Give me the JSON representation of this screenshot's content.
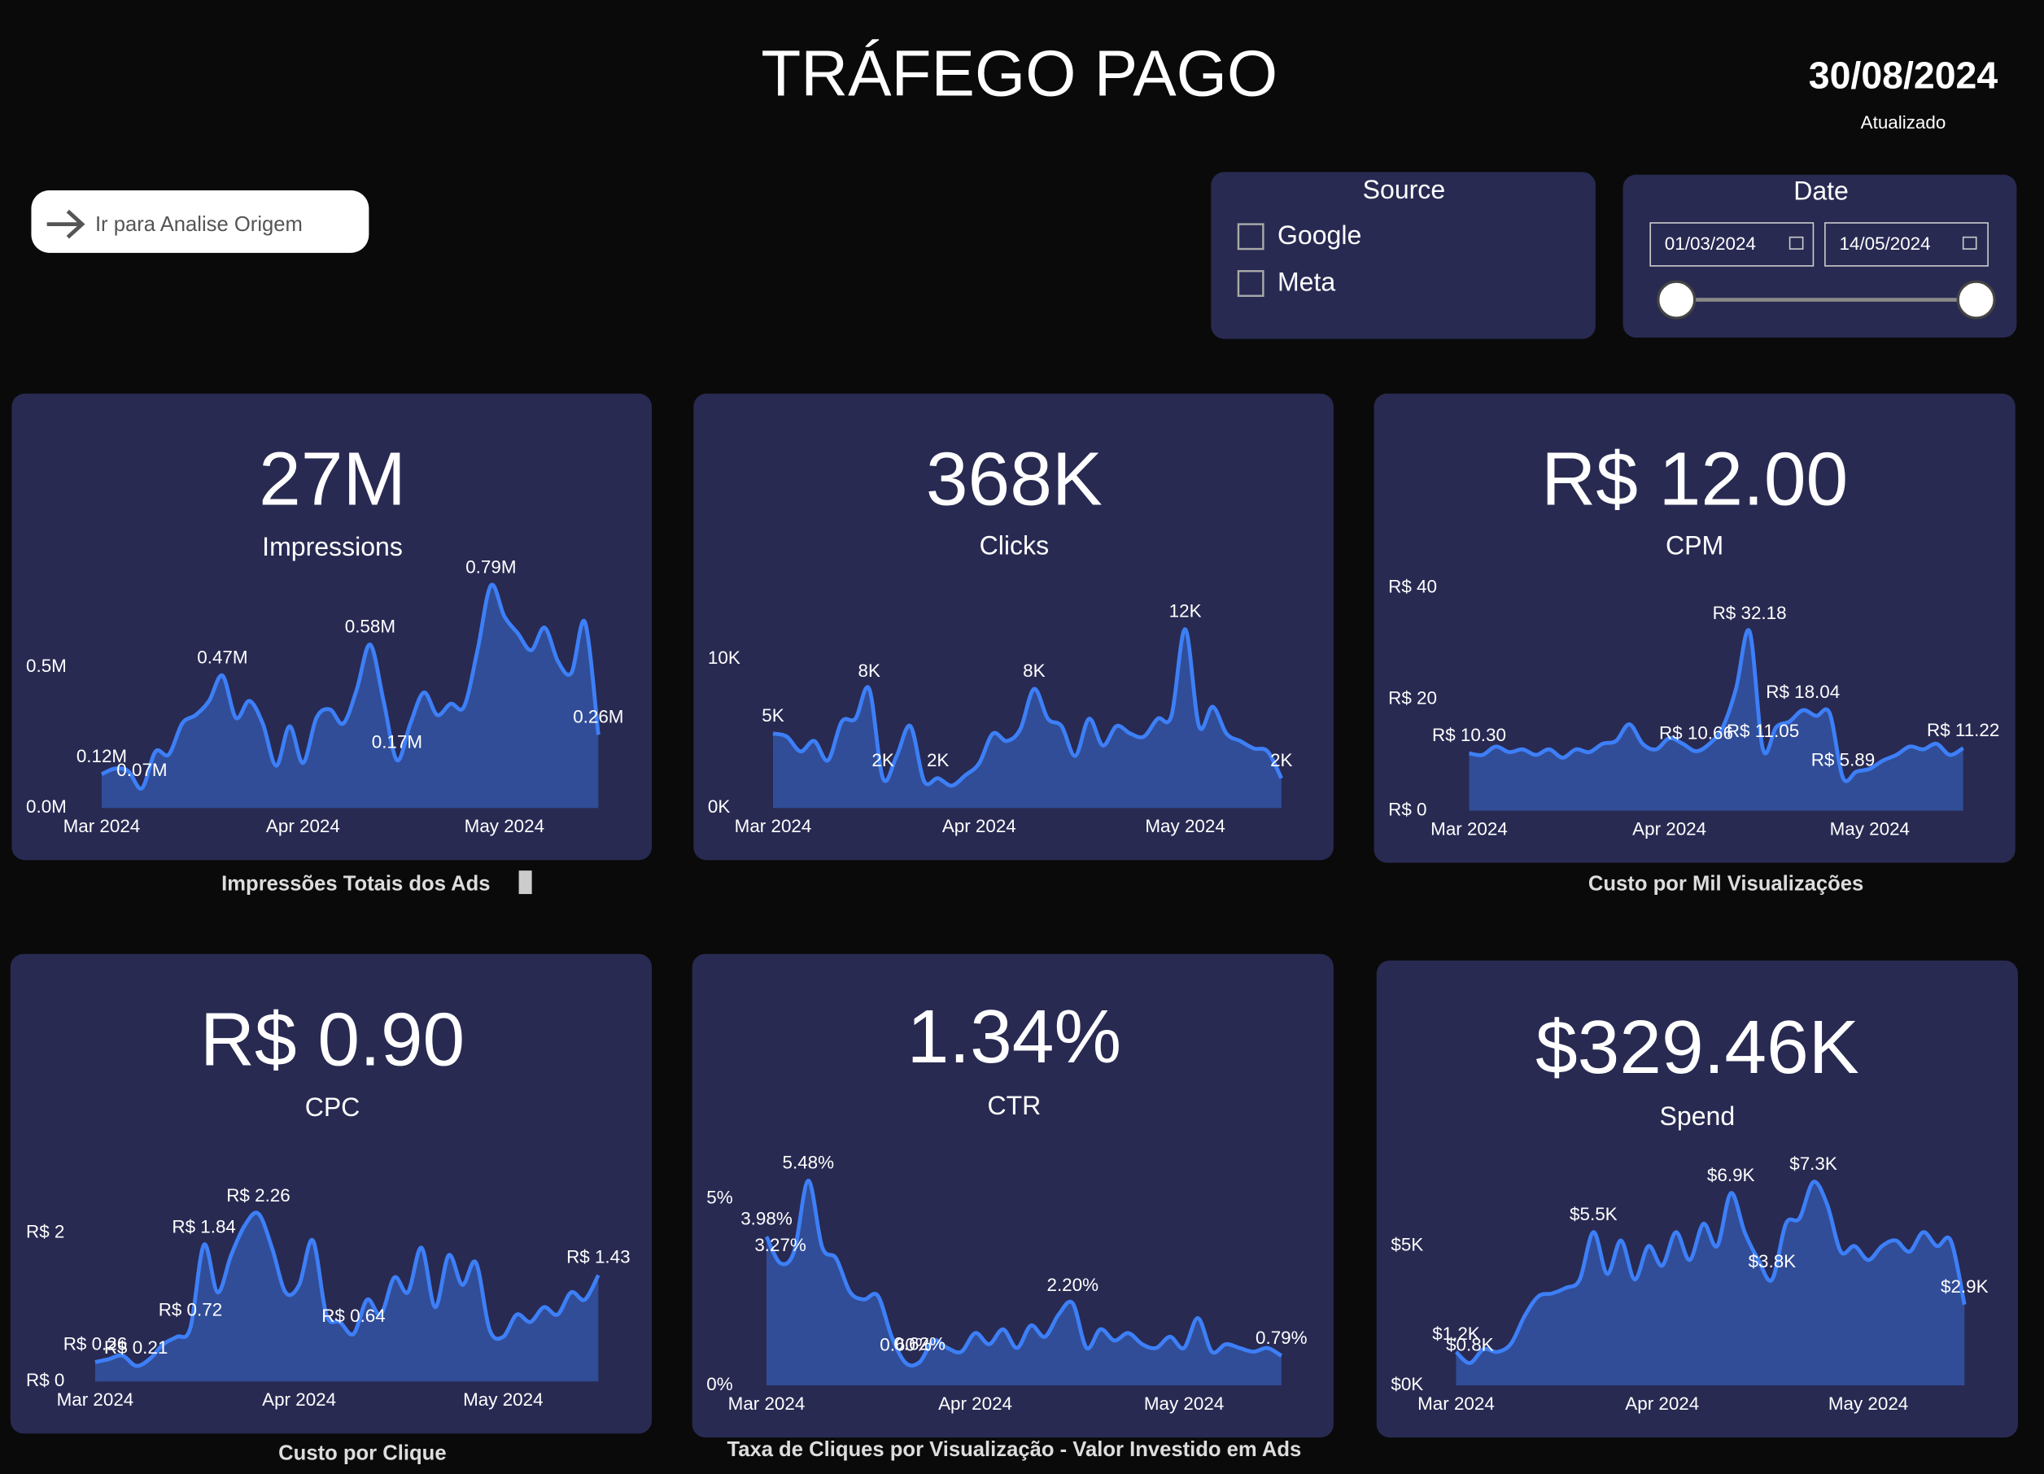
{
  "header": {
    "title": "TRÁFEGO PAGO",
    "date": "30/08/2024",
    "updated": "Atualizado"
  },
  "nav_button": {
    "label": "Ir para Analise Origem"
  },
  "source_slicer": {
    "title": "Source",
    "options": [
      "Google",
      "Meta"
    ]
  },
  "date_slicer": {
    "title": "Date",
    "start": "01/03/2024",
    "end": "14/05/2024"
  },
  "chart_data": [
    {
      "type": "area",
      "title": "27M",
      "subtitle": "Impressions",
      "caption": "Impressões Totais dos Ads",
      "categories": [
        "Mar 2024",
        null,
        null,
        null,
        null,
        null,
        null,
        null,
        null,
        null,
        null,
        null,
        null,
        null,
        null,
        "Apr 2024",
        null,
        null,
        null,
        null,
        null,
        null,
        null,
        null,
        null,
        null,
        null,
        null,
        null,
        null,
        "May 2024",
        null,
        null,
        null,
        null,
        null,
        null,
        null
      ],
      "values": [
        120000,
        140000,
        130000,
        70000,
        200000,
        190000,
        300000,
        330000,
        380000,
        470000,
        320000,
        380000,
        300000,
        150000,
        290000,
        160000,
        320000,
        350000,
        300000,
        420000,
        580000,
        380000,
        170000,
        300000,
        410000,
        330000,
        370000,
        360000,
        560000,
        790000,
        680000,
        620000,
        560000,
        640000,
        520000,
        480000,
        660000,
        260000
      ],
      "value_labels": [
        "0.12M",
        null,
        null,
        "0.07M",
        null,
        null,
        null,
        null,
        null,
        "0.47M",
        null,
        null,
        null,
        null,
        null,
        null,
        null,
        null,
        null,
        null,
        "0.58M",
        null,
        "0.17M",
        null,
        null,
        null,
        null,
        null,
        null,
        "0.79M",
        null,
        null,
        null,
        null,
        null,
        null,
        null,
        "0.26M"
      ],
      "color": "#3d7ff7",
      "ylim": [
        0,
        800000
      ],
      "yticks": [
        {
          "value": 0,
          "label": "0.0M"
        },
        {
          "value": 500000,
          "label": "0.5M"
        }
      ]
    },
    {
      "type": "area",
      "title": "368K",
      "subtitle": "Clicks",
      "categories": [
        "Mar 2024",
        null,
        null,
        null,
        null,
        null,
        null,
        null,
        null,
        null,
        null,
        null,
        null,
        null,
        null,
        "Apr 2024",
        null,
        null,
        null,
        null,
        null,
        null,
        null,
        null,
        null,
        null,
        null,
        null,
        null,
        null,
        "May 2024",
        null,
        null,
        null,
        null,
        null,
        null,
        null
      ],
      "values": [
        5000,
        4800,
        3800,
        4500,
        3200,
        5800,
        6000,
        8000,
        2000,
        3500,
        5500,
        1800,
        2000,
        1500,
        2200,
        3000,
        5000,
        4500,
        5300,
        8000,
        6000,
        5500,
        3500,
        6000,
        4200,
        5500,
        5000,
        4800,
        6000,
        6200,
        12000,
        5500,
        6800,
        5000,
        4500,
        4000,
        3800,
        2000
      ],
      "value_labels": [
        "5K",
        null,
        null,
        null,
        null,
        null,
        null,
        "8K",
        "2K",
        null,
        null,
        null,
        "2K",
        null,
        null,
        null,
        null,
        null,
        null,
        "8K",
        null,
        null,
        null,
        null,
        null,
        null,
        null,
        null,
        null,
        null,
        "12K",
        null,
        null,
        null,
        null,
        null,
        null,
        "2K"
      ],
      "color": "#3d7ff7",
      "ylim": [
        0,
        14000
      ],
      "yticks": [
        {
          "value": 0,
          "label": "0K"
        },
        {
          "value": 10000,
          "label": "10K"
        }
      ]
    },
    {
      "type": "area",
      "title": "R$ 12.00",
      "subtitle": "CPM",
      "caption": "Custo por Mil Visualizações",
      "categories": [
        "Mar 2024",
        null,
        null,
        null,
        null,
        null,
        null,
        null,
        null,
        null,
        null,
        null,
        null,
        null,
        null,
        "Apr 2024",
        null,
        null,
        null,
        null,
        null,
        null,
        null,
        null,
        null,
        null,
        null,
        null,
        null,
        null,
        "May 2024",
        null,
        null,
        null,
        null,
        null,
        null,
        null
      ],
      "values": [
        10.3,
        10,
        11.5,
        10.5,
        11,
        10,
        11,
        9.5,
        11,
        10.5,
        12,
        12.5,
        15.5,
        12,
        11,
        13,
        12,
        10.66,
        12,
        15,
        22,
        32.18,
        11.05,
        15,
        16,
        18.04,
        17,
        17.5,
        5.89,
        7,
        7.5,
        9,
        10,
        11.5,
        11,
        12,
        10,
        11.22
      ],
      "value_labels": [
        "R$ 10.30",
        null,
        null,
        null,
        null,
        null,
        null,
        null,
        null,
        null,
        null,
        null,
        null,
        null,
        null,
        null,
        null,
        "R$ 10.66",
        null,
        null,
        null,
        "R$ 32.18",
        "R$ 11.05",
        null,
        null,
        "R$ 18.04",
        null,
        null,
        "R$ 5.89",
        null,
        null,
        null,
        null,
        null,
        null,
        null,
        null,
        "R$ 11.22"
      ],
      "color": "#3d7ff7",
      "ylim": [
        0,
        40
      ],
      "yticks": [
        {
          "value": 0,
          "label": "R$ 0"
        },
        {
          "value": 20,
          "label": "R$ 20"
        },
        {
          "value": 40,
          "label": "R$ 40"
        }
      ]
    },
    {
      "type": "area",
      "title": "R$ 0.90",
      "subtitle": "CPC",
      "caption": "Custo por Clique",
      "categories": [
        "Mar 2024",
        null,
        null,
        null,
        null,
        null,
        null,
        null,
        null,
        null,
        null,
        null,
        null,
        null,
        null,
        "Apr 2024",
        null,
        null,
        null,
        null,
        null,
        null,
        null,
        null,
        null,
        null,
        null,
        null,
        null,
        null,
        "May 2024",
        null,
        null,
        null,
        null,
        null,
        null,
        null
      ],
      "values": [
        0.26,
        0.3,
        0.35,
        0.21,
        0.3,
        0.5,
        0.6,
        0.72,
        1.84,
        1.2,
        1.7,
        2.1,
        2.26,
        1.8,
        1.2,
        1.3,
        1.9,
        0.9,
        0.8,
        0.64,
        1.1,
        0.9,
        1.4,
        1.2,
        1.8,
        1.0,
        1.7,
        1.3,
        1.6,
        0.7,
        0.6,
        0.9,
        0.8,
        1.0,
        0.9,
        1.2,
        1.1,
        1.43
      ],
      "value_labels": [
        "R$ 0.26",
        null,
        null,
        "R$ 0.21",
        null,
        null,
        null,
        "R$ 0.72",
        "R$ 1.84",
        null,
        null,
        null,
        "R$ 2.26",
        null,
        null,
        null,
        null,
        null,
        null,
        "R$ 0.64",
        null,
        null,
        null,
        null,
        null,
        null,
        null,
        null,
        null,
        null,
        null,
        null,
        null,
        null,
        null,
        null,
        null,
        "R$ 1.43"
      ],
      "color": "#3d7ff7",
      "ylim": [
        0,
        3
      ],
      "yticks": [
        {
          "value": 0,
          "label": "R$ 0"
        },
        {
          "value": 2,
          "label": "R$ 2"
        }
      ]
    },
    {
      "type": "area",
      "title": "1.34%",
      "subtitle": "CTR",
      "caption": "Taxa de Cliques por Visualização - Valor Investido em Ads",
      "categories": [
        "Mar 2024",
        null,
        null,
        null,
        null,
        null,
        null,
        null,
        null,
        null,
        null,
        null,
        null,
        null,
        null,
        "Apr 2024",
        null,
        null,
        null,
        null,
        null,
        null,
        null,
        null,
        null,
        null,
        null,
        null,
        null,
        null,
        "May 2024",
        null,
        null,
        null,
        null,
        null,
        null,
        null
      ],
      "values": [
        3.98,
        3.27,
        3.6,
        5.48,
        3.7,
        3.4,
        2.5,
        2.3,
        2.4,
        1.3,
        0.6,
        0.62,
        1.2,
        1.0,
        0.9,
        1.4,
        1.1,
        1.5,
        1.0,
        1.6,
        1.3,
        1.9,
        2.2,
        1.0,
        1.5,
        1.2,
        1.4,
        1.1,
        1.0,
        1.3,
        1.0,
        1.8,
        0.9,
        1.1,
        1.0,
        0.9,
        1.0,
        0.79
      ],
      "value_labels": [
        "3.98%",
        "3.27%",
        null,
        "5.48%",
        null,
        null,
        null,
        null,
        null,
        null,
        "0.60%",
        "0.62%",
        null,
        null,
        null,
        null,
        null,
        null,
        null,
        null,
        null,
        null,
        "2.20%",
        null,
        null,
        null,
        null,
        null,
        null,
        null,
        null,
        null,
        null,
        null,
        null,
        null,
        null,
        "0.79%"
      ],
      "color": "#3d7ff7",
      "ylim": [
        0,
        6
      ],
      "yticks": [
        {
          "value": 0,
          "label": "0%"
        },
        {
          "value": 5,
          "label": "5%"
        }
      ]
    },
    {
      "type": "area",
      "title": "$329.46K",
      "subtitle": "Spend",
      "categories": [
        "Mar 2024",
        null,
        null,
        null,
        null,
        null,
        null,
        null,
        null,
        null,
        null,
        null,
        null,
        null,
        null,
        "Apr 2024",
        null,
        null,
        null,
        null,
        null,
        null,
        null,
        null,
        null,
        null,
        null,
        null,
        null,
        null,
        "May 2024",
        null,
        null,
        null,
        null,
        null,
        null,
        null
      ],
      "values": [
        1200,
        800,
        1300,
        1200,
        1500,
        2500,
        3200,
        3300,
        3500,
        3800,
        5500,
        4000,
        5200,
        3800,
        5000,
        4300,
        5500,
        4500,
        5800,
        5000,
        6900,
        5500,
        4500,
        3800,
        5800,
        6000,
        7300,
        6500,
        4800,
        5000,
        4500,
        5000,
        5200,
        4800,
        5500,
        5000,
        5200,
        2900
      ],
      "value_labels": [
        "$1.2K",
        "$0.8K",
        null,
        null,
        null,
        null,
        null,
        null,
        null,
        null,
        "$5.5K",
        null,
        null,
        null,
        null,
        null,
        null,
        null,
        null,
        null,
        "$6.9K",
        null,
        null,
        "$3.8K",
        null,
        null,
        "$7.3K",
        null,
        null,
        null,
        null,
        null,
        null,
        null,
        null,
        null,
        null,
        "$2.9K"
      ],
      "color": "#3d7ff7",
      "ylim": [
        0,
        8000
      ],
      "yticks": [
        {
          "value": 0,
          "label": "$0K"
        },
        {
          "value": 5000,
          "label": "$5K"
        }
      ]
    }
  ]
}
